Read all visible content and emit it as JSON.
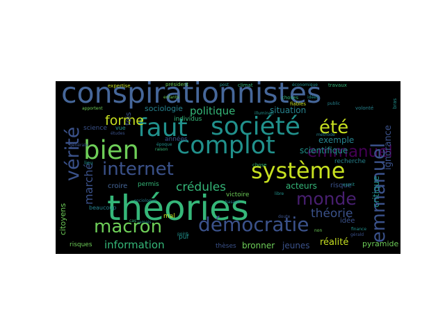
{
  "palette": {
    "background": "#000000",
    "page": "#ffffff",
    "blue": "#3b528b",
    "blue_light": "#46679a",
    "teal": "#21918c",
    "teal_dark": "#26828e",
    "green": "#35b779",
    "green_light": "#6ece58",
    "yellow": "#c7e020",
    "purple": "#481f70",
    "purple_dark": "#440154"
  },
  "words": [
    "conspirationnistes",
    "théories",
    "société",
    "complot",
    "bien",
    "faut",
    "internet",
    "système",
    "démocratie",
    "macron",
    "vérité",
    "emmanuel",
    "monde",
    "été",
    "forme",
    "politique",
    "crédules",
    "théorie",
    "information",
    "marché",
    "scientifique",
    "ignorance",
    "critique",
    "exemple",
    "situation",
    "acteurs",
    "bronner",
    "jeunes",
    "réalité",
    "pyramide",
    "citoyens",
    "sociologie",
    "individus",
    "fois",
    "victoire",
    "recherche",
    "risque",
    "idée",
    "croire",
    "permis",
    "mal",
    "puf",
    "risques",
    "thèses",
    "science",
    "années",
    "vue",
    "beaucoup",
    "expertise",
    "président",
    "climat",
    "post",
    "travaux",
    "enfants",
    "chose",
    "choses",
    "fiables",
    "public",
    "idées",
    "esprit",
    "lieu",
    "économique",
    "cas",
    "volonté",
    "bras",
    "finance",
    "gérald",
    "point",
    "hasard",
    "doute",
    "méthode",
    "non",
    "études",
    "époque",
    "sociologue",
    "apportent",
    "générale",
    "jamais",
    "illuminati",
    "raison",
    "libre"
  ]
}
